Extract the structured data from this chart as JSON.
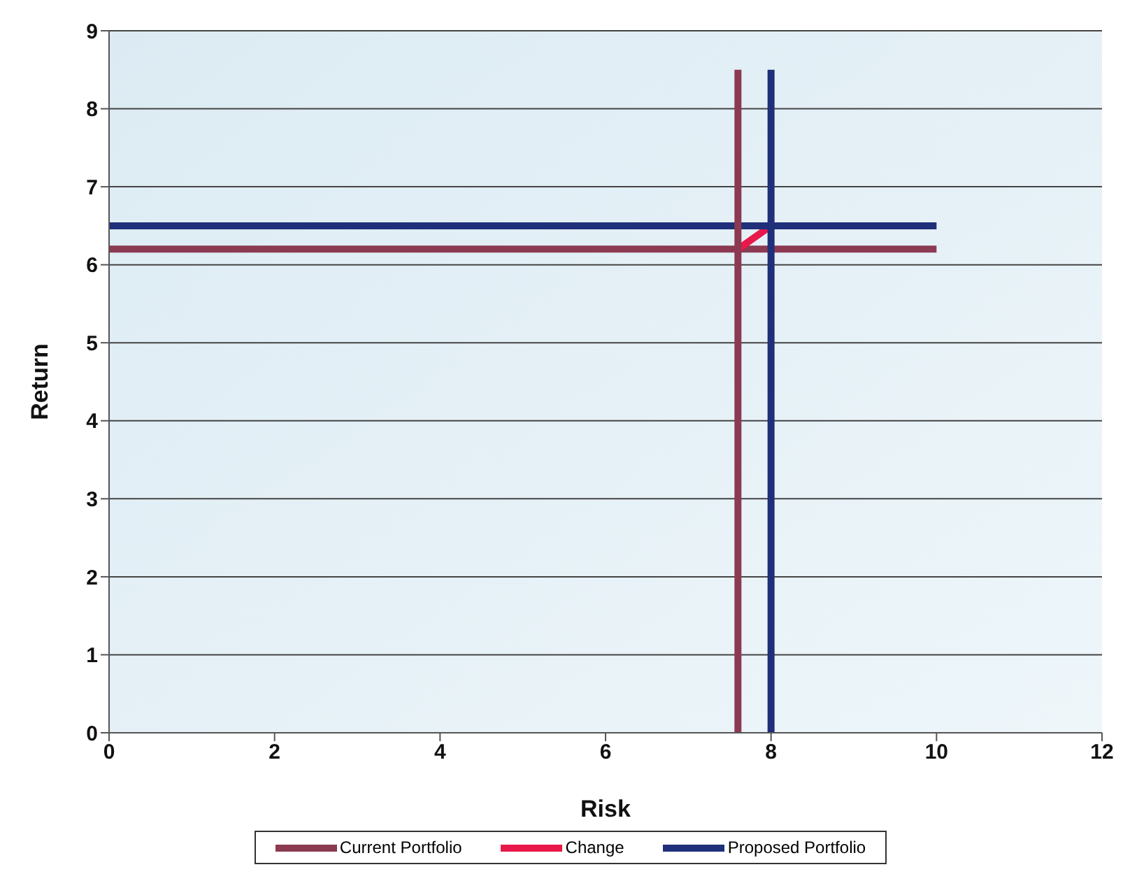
{
  "chart_data": {
    "type": "line",
    "xlabel": "Risk",
    "ylabel": "Return",
    "xlim": [
      0,
      12
    ],
    "xticks": [
      0,
      2,
      4,
      6,
      8,
      10,
      12
    ],
    "ylim": [
      0,
      9
    ],
    "yticks": [
      0,
      1,
      2,
      3,
      4,
      5,
      6,
      7,
      8,
      9
    ],
    "grid": "y",
    "legend": "bottom",
    "marker": "none",
    "line_style": "solid",
    "series": [
      {
        "name": "Current Portfolio",
        "color": "#8b3a52",
        "x": [
          0,
          10
        ],
        "values": [
          6.2,
          6.2
        ]
      },
      {
        "name": "Change",
        "color": "#e8194a",
        "x": [
          7.6,
          8
        ],
        "values": [
          6.2,
          6.5
        ]
      },
      {
        "name": "Proposed Portfolio",
        "color": "#1f2f7a",
        "x": [
          0,
          10
        ],
        "values": [
          6.5,
          6.5
        ]
      },
      {
        "color": "#8b3a52",
        "x": [
          7.6,
          7.6
        ],
        "values": [
          0,
          8.5
        ]
      },
      {
        "color": "#1f2f7a",
        "x": [
          8,
          8
        ],
        "values": [
          0,
          8.5
        ]
      }
    ]
  }
}
